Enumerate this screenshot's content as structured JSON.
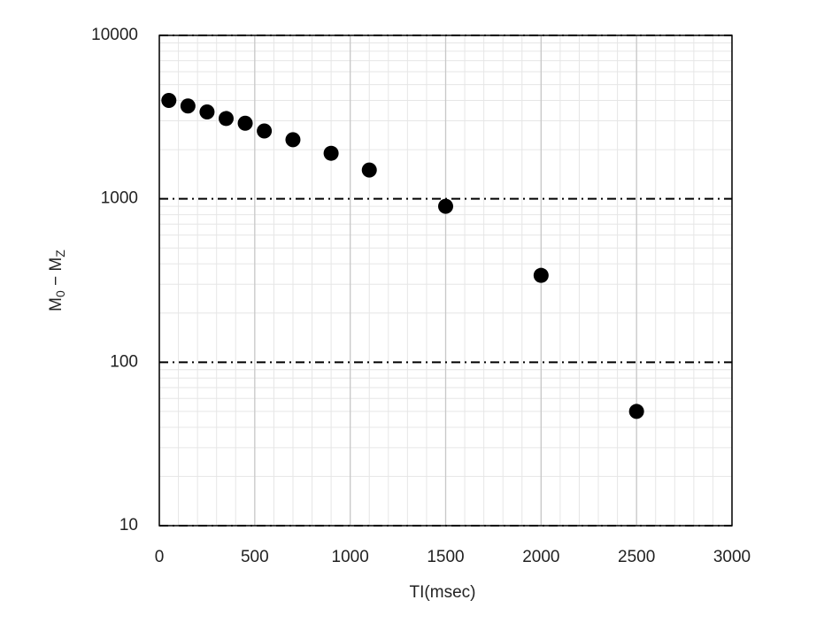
{
  "chart_data": {
    "type": "scatter",
    "x_label": "TI(msec)",
    "y_label_parts": [
      "M",
      "0",
      " − M",
      "Z"
    ],
    "x": [
      50,
      150,
      250,
      350,
      450,
      550,
      700,
      900,
      1100,
      1500,
      2000,
      2500
    ],
    "series": [
      {
        "color": "#000000",
        "values": [
          4000,
          3700,
          3400,
          3100,
          2900,
          2600,
          2300,
          1900,
          1500,
          900,
          340,
          50
        ]
      }
    ],
    "xlim": [
      0,
      3000
    ],
    "xticks": [
      0,
      500,
      1000,
      1500,
      2000,
      2500,
      3000
    ],
    "ylim": [
      10,
      10000
    ],
    "yticks": [
      10,
      100,
      1000,
      10000
    ],
    "y_log": true,
    "grid": true,
    "minor_grid": true
  }
}
